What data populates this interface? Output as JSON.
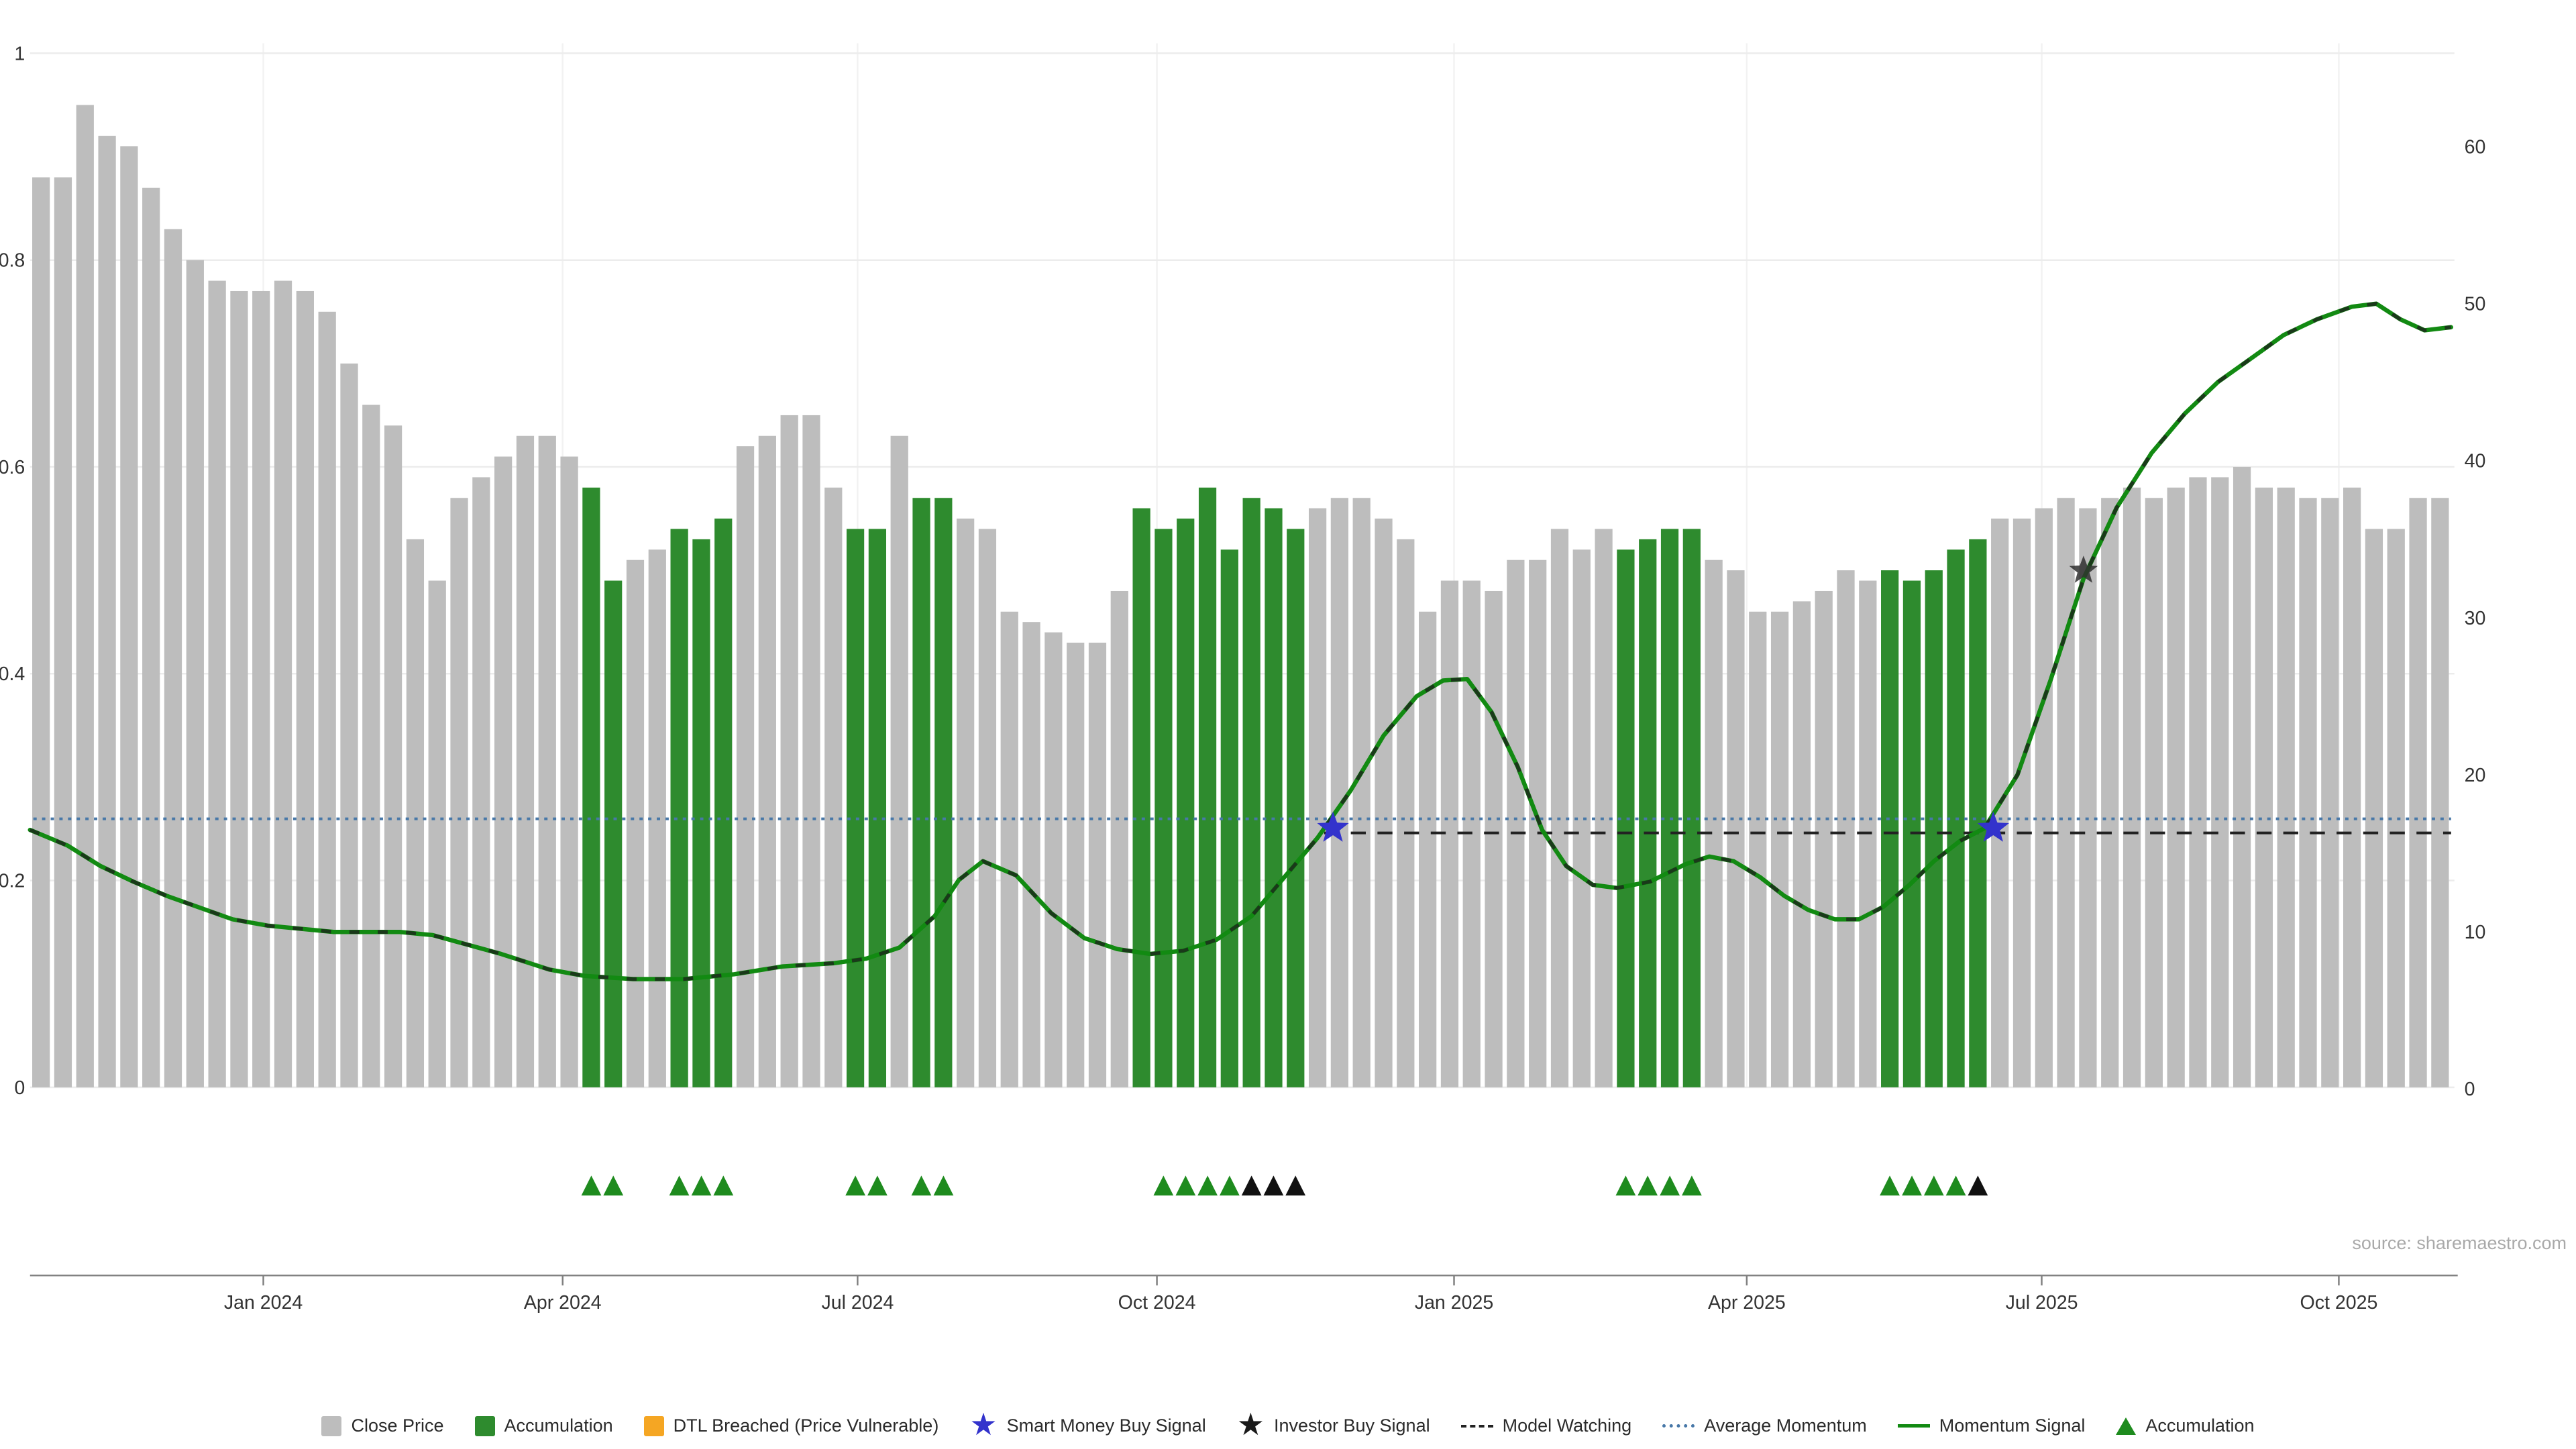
{
  "source_note": "source: sharemaestro.com",
  "colors": {
    "close_price": "#bdbdbd",
    "accumulation": "#2e8b2e",
    "dtl_breached": "#f5a623",
    "smart_money": "#3333cc",
    "investor": "#2f2f2f",
    "model_watching": "#222222",
    "average_momentum": "#4878a8",
    "momentum_signal": "#128a12",
    "momentum_dash": "#1d1d1d",
    "accumulation_marker": "#1e8b1e",
    "black_marker": "#111111",
    "grid": "#ececec",
    "grid_v": "#f2f2f2",
    "axis_text": "#333333"
  },
  "chart_data": {
    "type": "bar+line",
    "title": "",
    "x_ticks": [
      {
        "label": "Jan 2024",
        "i": 10.6
      },
      {
        "label": "Apr 2024",
        "i": 24.2
      },
      {
        "label": "Jul 2024",
        "i": 37.6
      },
      {
        "label": "Oct 2024",
        "i": 51.2
      },
      {
        "label": "Jan 2025",
        "i": 64.7
      },
      {
        "label": "Apr 2025",
        "i": 78.0
      },
      {
        "label": "Jul 2025",
        "i": 91.4
      },
      {
        "label": "Oct 2025",
        "i": 104.9
      }
    ],
    "left_axis": {
      "range": [
        0,
        1.05
      ],
      "ticks": [
        {
          "v": 0,
          "label": "0"
        },
        {
          "v": 0.2,
          "label": "0.2"
        },
        {
          "v": 0.4,
          "label": "0.4"
        },
        {
          "v": 0.6,
          "label": "0.6"
        },
        {
          "v": 0.8,
          "label": "0.8"
        },
        {
          "v": 1,
          "label": "1"
        }
      ]
    },
    "right_axis": {
      "range": [
        0,
        64
      ],
      "ticks": [
        {
          "v": 0,
          "label": "0"
        },
        {
          "v": 10,
          "label": "10"
        },
        {
          "v": 20,
          "label": "20"
        },
        {
          "v": 30,
          "label": "30"
        },
        {
          "v": 40,
          "label": "40"
        },
        {
          "v": 50,
          "label": "50"
        },
        {
          "v": 60,
          "label": "60"
        }
      ]
    },
    "close_price": [
      0.88,
      0.88,
      0.95,
      0.92,
      0.91,
      0.87,
      0.83,
      0.8,
      0.78,
      0.77,
      0.77,
      0.78,
      0.77,
      0.75,
      0.7,
      0.66,
      0.64,
      0.53,
      0.49,
      0.57,
      0.59,
      0.61,
      0.63,
      0.63,
      0.61,
      0.58,
      0.49,
      0.51,
      0.52,
      0.54,
      0.53,
      0.55,
      0.62,
      0.63,
      0.65,
      0.65,
      0.58,
      0.54,
      0.54,
      0.63,
      0.57,
      0.57,
      0.55,
      0.54,
      0.46,
      0.45,
      0.44,
      0.43,
      0.43,
      0.48,
      0.56,
      0.54,
      0.55,
      0.58,
      0.52,
      0.57,
      0.56,
      0.54,
      0.56,
      0.57,
      0.57,
      0.55,
      0.53,
      0.46,
      0.49,
      0.49,
      0.48,
      0.51,
      0.51,
      0.54,
      0.52,
      0.54,
      0.52,
      0.53,
      0.54,
      0.54,
      0.51,
      0.5,
      0.46,
      0.46,
      0.47,
      0.48,
      0.5,
      0.49,
      0.5,
      0.49,
      0.5,
      0.52,
      0.53,
      0.55,
      0.55,
      0.56,
      0.57,
      0.56,
      0.57,
      0.58,
      0.57,
      0.58,
      0.59,
      0.59,
      0.6,
      0.58,
      0.58,
      0.57,
      0.57,
      0.58,
      0.54,
      0.54,
      0.57,
      0.57
    ],
    "accumulation_bars": [
      25,
      26,
      29,
      30,
      31,
      37,
      38,
      40,
      41,
      50,
      51,
      52,
      53,
      54,
      55,
      56,
      57,
      72,
      73,
      74,
      75,
      84,
      85,
      86,
      87,
      88
    ],
    "momentum_signal": [
      [
        0,
        16.5
      ],
      [
        1.7,
        15.5
      ],
      [
        3.2,
        14.2
      ],
      [
        4.7,
        13.2
      ],
      [
        6.2,
        12.3
      ],
      [
        9.2,
        10.8
      ],
      [
        10.8,
        10.4
      ],
      [
        13.8,
        10.0
      ],
      [
        16.8,
        10.0
      ],
      [
        18.3,
        9.8
      ],
      [
        21.4,
        8.6
      ],
      [
        23.6,
        7.6
      ],
      [
        25.2,
        7.2
      ],
      [
        27.4,
        7.0
      ],
      [
        29.7,
        7.0
      ],
      [
        32.0,
        7.3
      ],
      [
        34.2,
        7.8
      ],
      [
        36.5,
        8.0
      ],
      [
        38.0,
        8.3
      ],
      [
        39.5,
        9.0
      ],
      [
        41.1,
        11.0
      ],
      [
        42.2,
        13.3
      ],
      [
        43.3,
        14.5
      ],
      [
        44.8,
        13.6
      ],
      [
        46.4,
        11.2
      ],
      [
        47.9,
        9.6
      ],
      [
        49.4,
        8.9
      ],
      [
        50.9,
        8.6
      ],
      [
        52.4,
        8.8
      ],
      [
        53.9,
        9.5
      ],
      [
        55.5,
        11.0
      ],
      [
        57.0,
        13.5
      ],
      [
        58.5,
        16.0
      ],
      [
        60.0,
        19.0
      ],
      [
        61.5,
        22.5
      ],
      [
        63.0,
        25.0
      ],
      [
        64.2,
        26.0
      ],
      [
        65.3,
        26.1
      ],
      [
        66.4,
        24.0
      ],
      [
        67.6,
        20.5
      ],
      [
        68.7,
        16.5
      ],
      [
        69.8,
        14.2
      ],
      [
        71.0,
        13.0
      ],
      [
        72.1,
        12.8
      ],
      [
        73.6,
        13.2
      ],
      [
        75.2,
        14.3
      ],
      [
        76.3,
        14.8
      ],
      [
        77.4,
        14.5
      ],
      [
        78.6,
        13.5
      ],
      [
        79.7,
        12.3
      ],
      [
        80.8,
        11.4
      ],
      [
        82.0,
        10.8
      ],
      [
        83.1,
        10.8
      ],
      [
        84.2,
        11.6
      ],
      [
        85.4,
        13.0
      ],
      [
        86.5,
        14.5
      ],
      [
        87.7,
        15.8
      ],
      [
        88.8,
        16.6
      ],
      [
        90.3,
        20.0
      ],
      [
        91.8,
        26.0
      ],
      [
        93.3,
        32.5
      ],
      [
        94.8,
        37.0
      ],
      [
        96.4,
        40.5
      ],
      [
        97.9,
        43.0
      ],
      [
        99.4,
        45.0
      ],
      [
        100.9,
        46.5
      ],
      [
        102.4,
        48.0
      ],
      [
        103.9,
        49.0
      ],
      [
        105.5,
        49.8
      ],
      [
        106.6,
        50.0
      ],
      [
        107.7,
        49.0
      ],
      [
        108.8,
        48.3
      ],
      [
        110.0,
        48.5
      ]
    ],
    "average_momentum": 17.2,
    "model_watching": 16.3,
    "model_watching_start_i": 58.8,
    "smart_money_buy_signals": [
      {
        "i": 59.2,
        "v": 16.6
      },
      {
        "i": 89.2,
        "v": 16.6
      }
    ],
    "investor_buy_signals": [
      {
        "i": 93.3,
        "v": 33.0
      }
    ],
    "accumulation_markers_green": [
      25,
      26,
      29,
      30,
      31,
      37,
      38,
      40,
      41,
      51,
      52,
      53,
      54,
      72,
      73,
      74,
      75,
      84,
      85,
      86,
      87
    ],
    "accumulation_markers_black": [
      55,
      56,
      57,
      88
    ]
  },
  "legend": {
    "items": [
      {
        "label": "Close Price",
        "swatch": "square",
        "color": "#bdbdbd"
      },
      {
        "label": "Accumulation",
        "swatch": "square",
        "color": "#2e8b2e"
      },
      {
        "label": "DTL Breached (Price Vulnerable)",
        "swatch": "square",
        "color": "#f5a623"
      },
      {
        "label": "Smart Money Buy Signal",
        "swatch": "star",
        "color": "#3333cc"
      },
      {
        "label": "Investor Buy Signal",
        "swatch": "star",
        "color": "#1a1a1a"
      },
      {
        "label": "Model Watching",
        "swatch": "dashed-line",
        "color": "#222222"
      },
      {
        "label": "Average Momentum",
        "swatch": "dotted-line",
        "color": "#4878a8"
      },
      {
        "label": "Momentum Signal",
        "swatch": "solid-line",
        "color": "#128a12"
      },
      {
        "label": "Accumulation",
        "swatch": "triangle",
        "color": "#1e8b1e"
      }
    ]
  }
}
